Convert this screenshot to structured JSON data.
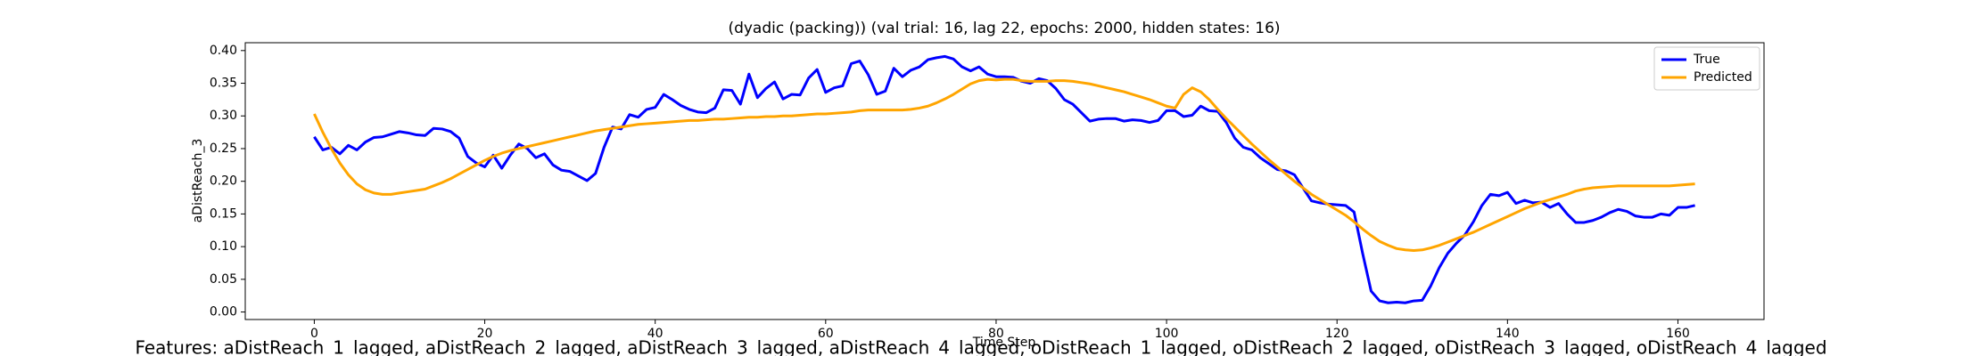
{
  "chart_data": {
    "type": "line",
    "title": "(dyadic (packing)) (val trial: 16, lag 22, epochs: 2000, hidden states: 16)",
    "xlabel": "Time Step",
    "ylabel": "aDistReach_3",
    "x": [
      0,
      1,
      2,
      3,
      4,
      5,
      6,
      7,
      8,
      9,
      10,
      11,
      12,
      13,
      14,
      15,
      16,
      17,
      18,
      19,
      20,
      21,
      22,
      23,
      24,
      25,
      26,
      27,
      28,
      29,
      30,
      31,
      32,
      33,
      34,
      35,
      36,
      37,
      38,
      39,
      40,
      41,
      42,
      43,
      44,
      45,
      46,
      47,
      48,
      49,
      50,
      51,
      52,
      53,
      54,
      55,
      56,
      57,
      58,
      59,
      60,
      61,
      62,
      63,
      64,
      65,
      66,
      67,
      68,
      69,
      70,
      71,
      72,
      73,
      74,
      75,
      76,
      77,
      78,
      79,
      80,
      81,
      82,
      83,
      84,
      85,
      86,
      87,
      88,
      89,
      90,
      91,
      92,
      93,
      94,
      95,
      96,
      97,
      98,
      99,
      100,
      101,
      102,
      103,
      104,
      105,
      106,
      107,
      108,
      109,
      110,
      111,
      112,
      113,
      114,
      115,
      116,
      117,
      118,
      119,
      120,
      121,
      122,
      123,
      124,
      125,
      126,
      127,
      128,
      129,
      130,
      131,
      132,
      133,
      134,
      135,
      136,
      137,
      138,
      139,
      140,
      141,
      142,
      143,
      144,
      145,
      146,
      147,
      148,
      149,
      150,
      151,
      152,
      153,
      154,
      155,
      156,
      157,
      158,
      159,
      160,
      161,
      162
    ],
    "series": [
      {
        "name": "True",
        "color": "#0000ff",
        "values": [
          0.268,
          0.248,
          0.252,
          0.242,
          0.255,
          0.248,
          0.26,
          0.267,
          0.268,
          0.272,
          0.276,
          0.274,
          0.271,
          0.27,
          0.281,
          0.28,
          0.276,
          0.266,
          0.238,
          0.228,
          0.222,
          0.24,
          0.22,
          0.24,
          0.257,
          0.25,
          0.236,
          0.242,
          0.225,
          0.217,
          0.215,
          0.208,
          0.201,
          0.212,
          0.252,
          0.283,
          0.28,
          0.302,
          0.298,
          0.31,
          0.313,
          0.333,
          0.325,
          0.316,
          0.31,
          0.306,
          0.305,
          0.312,
          0.34,
          0.339,
          0.318,
          0.364,
          0.328,
          0.342,
          0.352,
          0.326,
          0.333,
          0.332,
          0.358,
          0.371,
          0.336,
          0.343,
          0.346,
          0.38,
          0.384,
          0.363,
          0.333,
          0.338,
          0.373,
          0.36,
          0.37,
          0.375,
          0.386,
          0.389,
          0.391,
          0.387,
          0.375,
          0.369,
          0.375,
          0.364,
          0.36,
          0.36,
          0.359,
          0.353,
          0.35,
          0.357,
          0.354,
          0.342,
          0.325,
          0.318,
          0.305,
          0.292,
          0.295,
          0.296,
          0.296,
          0.292,
          0.294,
          0.293,
          0.29,
          0.293,
          0.308,
          0.308,
          0.299,
          0.301,
          0.315,
          0.308,
          0.307,
          0.29,
          0.266,
          0.252,
          0.248,
          0.236,
          0.227,
          0.218,
          0.216,
          0.21,
          0.19,
          0.17,
          0.167,
          0.165,
          0.164,
          0.163,
          0.153,
          0.09,
          0.032,
          0.017,
          0.014,
          0.015,
          0.014,
          0.017,
          0.018,
          0.04,
          0.068,
          0.09,
          0.105,
          0.118,
          0.138,
          0.163,
          0.18,
          0.178,
          0.183,
          0.166,
          0.171,
          0.167,
          0.168,
          0.16,
          0.166,
          0.15,
          0.137,
          0.137,
          0.14,
          0.145,
          0.152,
          0.157,
          0.154,
          0.147,
          0.145,
          0.145,
          0.15,
          0.148,
          0.16,
          0.16,
          0.163
        ]
      },
      {
        "name": "Predicted",
        "color": "#ffa500",
        "values": [
          0.303,
          0.275,
          0.25,
          0.228,
          0.21,
          0.196,
          0.187,
          0.182,
          0.18,
          0.18,
          0.182,
          0.184,
          0.186,
          0.188,
          0.193,
          0.198,
          0.204,
          0.211,
          0.218,
          0.225,
          0.232,
          0.238,
          0.243,
          0.247,
          0.25,
          0.253,
          0.256,
          0.259,
          0.262,
          0.265,
          0.268,
          0.271,
          0.274,
          0.277,
          0.279,
          0.281,
          0.283,
          0.285,
          0.287,
          0.288,
          0.289,
          0.29,
          0.291,
          0.292,
          0.293,
          0.293,
          0.294,
          0.295,
          0.295,
          0.296,
          0.297,
          0.298,
          0.298,
          0.299,
          0.299,
          0.3,
          0.3,
          0.301,
          0.302,
          0.303,
          0.303,
          0.304,
          0.305,
          0.306,
          0.308,
          0.309,
          0.309,
          0.309,
          0.309,
          0.309,
          0.31,
          0.312,
          0.315,
          0.32,
          0.326,
          0.333,
          0.341,
          0.349,
          0.354,
          0.356,
          0.355,
          0.356,
          0.356,
          0.354,
          0.353,
          0.353,
          0.353,
          0.354,
          0.354,
          0.353,
          0.351,
          0.349,
          0.346,
          0.343,
          0.34,
          0.337,
          0.333,
          0.329,
          0.325,
          0.32,
          0.315,
          0.312,
          0.333,
          0.343,
          0.337,
          0.325,
          0.31,
          0.296,
          0.283,
          0.27,
          0.257,
          0.245,
          0.233,
          0.222,
          0.211,
          0.2,
          0.19,
          0.18,
          0.172,
          0.164,
          0.156,
          0.148,
          0.138,
          0.127,
          0.117,
          0.108,
          0.102,
          0.097,
          0.095,
          0.094,
          0.095,
          0.098,
          0.102,
          0.107,
          0.112,
          0.117,
          0.122,
          0.128,
          0.134,
          0.14,
          0.146,
          0.152,
          0.158,
          0.163,
          0.168,
          0.172,
          0.176,
          0.18,
          0.185,
          0.188,
          0.19,
          0.191,
          0.192,
          0.193,
          0.193,
          0.193,
          0.193,
          0.193,
          0.193,
          0.193,
          0.194,
          0.195,
          0.196
        ]
      }
    ],
    "xlim": [
      -8.1,
      170.1
    ],
    "ylim": [
      -0.0115,
      0.412
    ],
    "xticks": [
      0,
      20,
      40,
      60,
      80,
      100,
      120,
      140,
      160
    ],
    "yticks": [
      {
        "value": 0,
        "label": "0.00"
      },
      {
        "value": 0.05,
        "label": "0.05"
      },
      {
        "value": 0.1,
        "label": "0.10"
      },
      {
        "value": 0.15,
        "label": "0.15"
      },
      {
        "value": 0.2,
        "label": "0.20"
      },
      {
        "value": 0.25,
        "label": "0.25"
      },
      {
        "value": 0.3,
        "label": "0.30"
      },
      {
        "value": 0.35,
        "label": "0.35"
      },
      {
        "value": 0.4,
        "label": "0.40"
      }
    ],
    "grid": false,
    "legend": "upper-right"
  },
  "footer": "Features: aDistReach_1_lagged, aDistReach_2_lagged, aDistReach_3_lagged, aDistReach_4_lagged, oDistReach_1_lagged, oDistReach_2_lagged, oDistReach_3_lagged, oDistReach_4_lagged"
}
